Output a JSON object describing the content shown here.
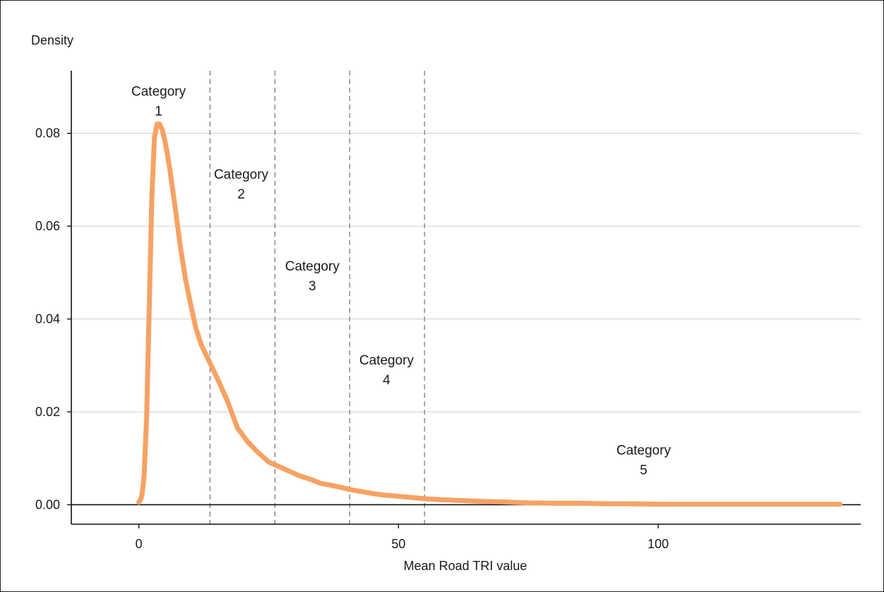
{
  "chart_data": {
    "type": "line",
    "title": "",
    "xlabel": "Mean Road TRI value",
    "ylabel": "Density",
    "xlim": [
      -13,
      139
    ],
    "ylim": [
      -0.0042,
      0.0935
    ],
    "xticks": [
      0,
      50,
      100
    ],
    "xtick_labels": [
      "0",
      "50",
      "100"
    ],
    "yticks": [
      0,
      0.02,
      0.04,
      0.06,
      0.08
    ],
    "ytick_labels": [
      "0.00",
      "0.02",
      "0.04",
      "0.06",
      "0.08"
    ],
    "grid": "horizontal",
    "line_color": "#f6a264",
    "series": [
      {
        "x": [
          0,
          0.3,
          0.6,
          1,
          1.5,
          2,
          2.5,
          3,
          3.5,
          4,
          4.5,
          5,
          5.5,
          6,
          7,
          8,
          9,
          10,
          11,
          12,
          13.5,
          15,
          17,
          19,
          21,
          23,
          25,
          27,
          29,
          31,
          33,
          35,
          37,
          39,
          41,
          43,
          45,
          47,
          49,
          51,
          53,
          55,
          58,
          62,
          66,
          70,
          75,
          80,
          85,
          90,
          95,
          100,
          110,
          120,
          135
        ],
        "y": [
          0.0005,
          0.001,
          0.002,
          0.006,
          0.019,
          0.042,
          0.066,
          0.079,
          0.082,
          0.082,
          0.0808,
          0.0785,
          0.0755,
          0.072,
          0.064,
          0.0555,
          0.0485,
          0.043,
          0.038,
          0.0345,
          0.031,
          0.0275,
          0.0225,
          0.0165,
          0.0135,
          0.0112,
          0.0092,
          0.0082,
          0.0072,
          0.0062,
          0.0055,
          0.0046,
          0.0042,
          0.0037,
          0.0032,
          0.0028,
          0.0024,
          0.0021,
          0.0019,
          0.0017,
          0.0015,
          0.0013,
          0.0011,
          0.0009,
          0.0007,
          0.0006,
          0.0004,
          0.0003,
          0.0003,
          0.0002,
          0.0002,
          0.0001,
          0.0001,
          0.0001,
          0.0001
        ]
      }
    ],
    "vlines": [
      13.7,
      26.2,
      40.6,
      55.0
    ],
    "annotations": [
      {
        "line1": "Category",
        "line2": "1",
        "x": 3.8,
        "y": 0.0881
      },
      {
        "line1": "Category",
        "line2": "2",
        "x": 19.7,
        "y": 0.0702
      },
      {
        "line1": "Category",
        "line2": "3",
        "x": 33.4,
        "y": 0.0504
      },
      {
        "line1": "Category",
        "line2": "4",
        "x": 47.7,
        "y": 0.0302
      },
      {
        "line1": "Category",
        "line2": "5",
        "x": 97.2,
        "y": 0.0108
      }
    ]
  }
}
